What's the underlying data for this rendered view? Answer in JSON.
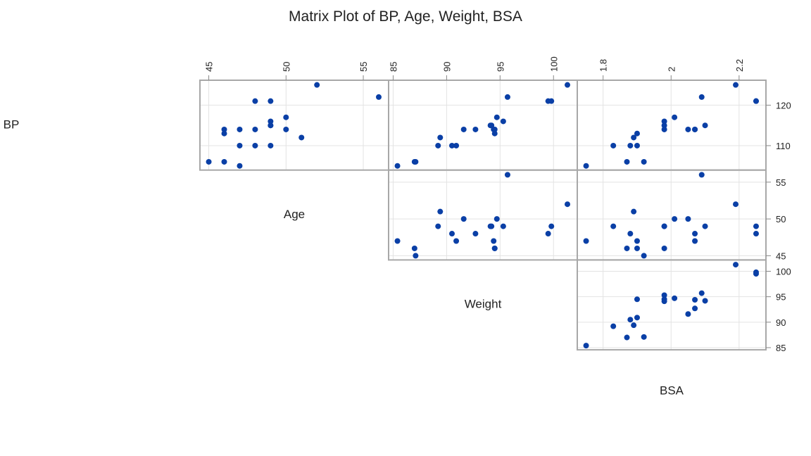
{
  "chart_data": {
    "type": "scatter",
    "title": "Matrix Plot of BP, Age, Weight, BSA",
    "variables": [
      "BP",
      "Age",
      "Weight",
      "BSA"
    ],
    "point_color": "#0a3fa6",
    "ticks": {
      "BP": [
        110,
        120
      ],
      "Age": [
        45,
        50,
        55
      ],
      "Weight": [
        85,
        90,
        95,
        100
      ],
      "BSA": [
        1.8,
        2.0,
        2.2
      ]
    },
    "tick_labels": {
      "BP": [
        "110",
        "120"
      ],
      "Age": [
        "45",
        "50",
        "55"
      ],
      "Weight": [
        "85",
        "90",
        "95",
        "100"
      ],
      "BSA": [
        "1.8",
        "2",
        "2.2"
      ]
    },
    "data": {
      "BP": [
        105,
        115,
        116,
        117,
        112,
        121,
        121,
        110,
        110,
        114,
        114,
        115,
        114,
        106,
        125,
        114,
        106,
        113,
        110,
        122
      ],
      "Age": [
        47,
        49,
        49,
        50,
        51,
        48,
        49,
        47,
        49,
        48,
        47,
        49,
        50,
        45,
        52,
        46,
        46,
        46,
        48,
        56
      ],
      "Weight": [
        85.4,
        94.2,
        95.3,
        94.7,
        89.4,
        99.5,
        99.8,
        90.9,
        89.2,
        92.7,
        94.4,
        94.1,
        91.6,
        87.1,
        101.3,
        94.5,
        87.0,
        94.5,
        90.5,
        95.7
      ],
      "BSA": [
        1.75,
        2.1,
        1.98,
        2.01,
        1.89,
        2.25,
        2.25,
        1.9,
        1.83,
        2.07,
        2.07,
        1.98,
        2.05,
        1.92,
        2.19,
        1.98,
        1.87,
        1.9,
        1.88,
        2.09
      ]
    }
  }
}
